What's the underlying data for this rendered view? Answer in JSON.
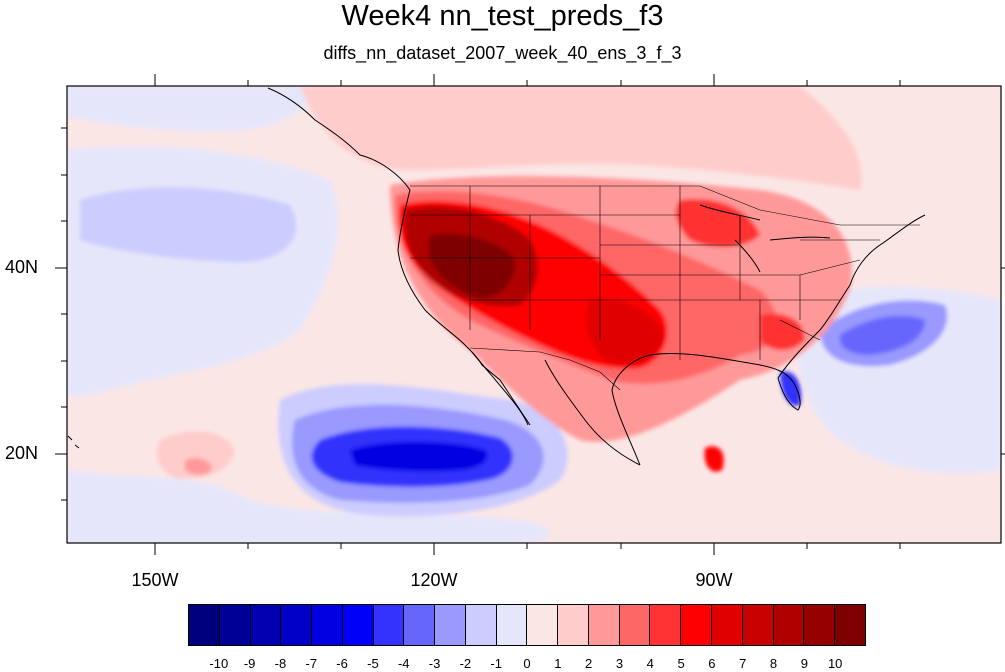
{
  "title": "Week4 nn_test_preds_f3",
  "subtitle": "diffs_nn_dataset_2007_week_40_ens_3_f_3",
  "map": {
    "lon_range": [
      -160,
      -60
    ],
    "lat_range": [
      10,
      59
    ],
    "lon_labels": [
      "150W",
      "120W",
      "90W"
    ],
    "lat_labels": [
      "40N",
      "20N"
    ],
    "region": "North America and eastern Pacific",
    "features": [
      "coastlines",
      "US state boundaries",
      "Canadian province boundaries"
    ]
  },
  "colorbar": {
    "labels": [
      "-10",
      "-9",
      "-8",
      "-7",
      "-6",
      "-5",
      "-4",
      "-3",
      "-2",
      "-1",
      "0",
      "1",
      "2",
      "3",
      "4",
      "5",
      "6",
      "7",
      "8",
      "9",
      "10"
    ],
    "colors": [
      "#00007f",
      "#000097",
      "#0000b0",
      "#0000c8",
      "#0000e1",
      "#0000fa",
      "#3333fd",
      "#6666fd",
      "#9999fe",
      "#ccccff",
      "#e6e6fb",
      "#fbe6e6",
      "#ffcccc",
      "#ff9999",
      "#ff6666",
      "#ff3333",
      "#ff0000",
      "#e10000",
      "#c80000",
      "#b00000",
      "#970000",
      "#7f0000"
    ]
  },
  "chart_data": {
    "type": "heatmap",
    "title": "Week4 nn_test_preds_f3",
    "subtitle": "diffs_nn_dataset_2007_week_40_ens_3_f_3",
    "value_range": [
      -10,
      10
    ],
    "contour_levels": [
      -10,
      -9,
      -8,
      -7,
      -6,
      -5,
      -4,
      -3,
      -2,
      -1,
      0,
      1,
      2,
      3,
      4,
      5,
      6,
      7,
      8,
      9,
      10
    ],
    "anomalies": [
      {
        "region": "Western United States (Great Basin)",
        "sign": "positive",
        "approx_max": 10
      },
      {
        "region": "Southern Plains / Texas",
        "sign": "positive",
        "approx_max": 7
      },
      {
        "region": "Upper Midwest",
        "sign": "positive",
        "approx_max": 5
      },
      {
        "region": "Southeastern United States",
        "sign": "positive",
        "approx_max": 5
      },
      {
        "region": "Eastern Pacific west of Baja California",
        "sign": "negative",
        "approx_min": -6
      },
      {
        "region": "Western Atlantic off the southeastern US coast",
        "sign": "negative",
        "approx_min": -4
      },
      {
        "region": "Southern Florida",
        "sign": "negative",
        "approx_min": -6
      },
      {
        "region": "Northeast Pacific",
        "sign": "negative",
        "approx_min": -3
      }
    ]
  }
}
